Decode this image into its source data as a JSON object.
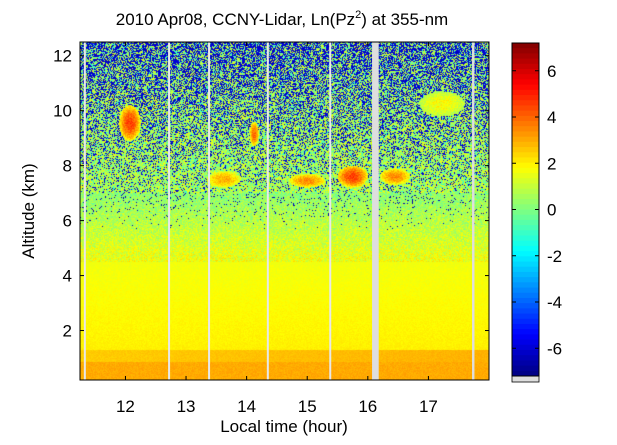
{
  "chart_data": {
    "type": "heatmap",
    "title_prefix": "2010 Apr08, CCNY-Lidar, Ln(Pz",
    "title_sup": "2",
    "title_suffix": ") at 355-nm",
    "xlabel": "Local time (hour)",
    "ylabel": "Altitude (km)",
    "xlim": [
      11.25,
      18.0
    ],
    "ylim": [
      0.2,
      12.5
    ],
    "x_ticks": [
      12,
      13,
      14,
      15,
      16,
      17
    ],
    "y_ticks": [
      2,
      4,
      6,
      8,
      10,
      12
    ],
    "colorbar": {
      "range": [
        -7.2,
        7.2
      ],
      "ticks": [
        6,
        4,
        2,
        0,
        -2,
        -4,
        -6
      ],
      "tick_labels": [
        "6",
        "4",
        "2",
        "0",
        "-2",
        "-4",
        "-6"
      ],
      "colormap": "jet"
    },
    "data_gaps_hours": [
      [
        16.07,
        16.18
      ],
      [
        17.72,
        17.76
      ]
    ],
    "thin_gaps_hours": [
      11.33,
      12.72,
      13.38,
      14.35,
      15.38
    ],
    "features": [
      {
        "type": "cloud",
        "x": [
          11.9,
          12.25
        ],
        "y": [
          8.9,
          10.2
        ],
        "value": 4.5
      },
      {
        "type": "cloud",
        "x": [
          13.35,
          13.9
        ],
        "y": [
          7.2,
          7.8
        ],
        "value": 3.0
      },
      {
        "type": "cloud",
        "x": [
          14.05,
          14.2
        ],
        "y": [
          8.7,
          9.6
        ],
        "value": 4.0
      },
      {
        "type": "cloud",
        "x": [
          14.7,
          15.3
        ],
        "y": [
          7.2,
          7.7
        ],
        "value": 3.5
      },
      {
        "type": "cloud",
        "x": [
          15.5,
          16.0
        ],
        "y": [
          7.2,
          8.0
        ],
        "value": 4.5
      },
      {
        "type": "cloud",
        "x": [
          16.2,
          16.7
        ],
        "y": [
          7.3,
          7.9
        ],
        "value": 3.5
      },
      {
        "type": "cloud",
        "x": [
          16.85,
          17.6
        ],
        "y": [
          9.8,
          10.7
        ],
        "value": 1.8
      }
    ]
  }
}
